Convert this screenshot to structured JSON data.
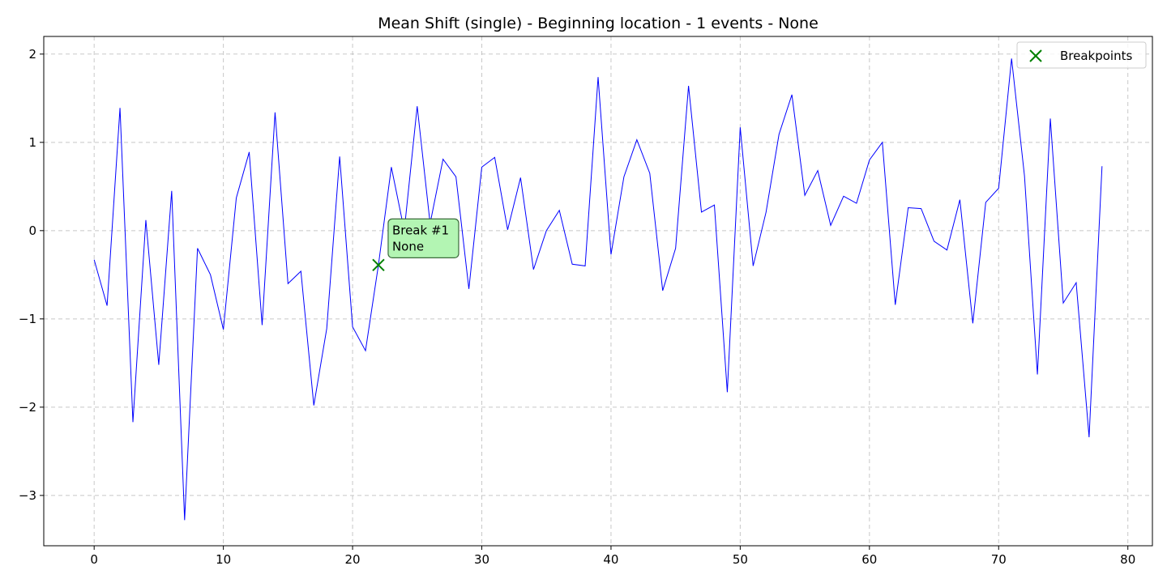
{
  "chart_data": {
    "type": "line",
    "title": "Mean Shift (single) - Beginning location - 1 events - None",
    "xlabel": "",
    "ylabel": "",
    "xlim": [
      -3.9,
      81.9
    ],
    "ylim": [
      -3.57,
      2.2
    ],
    "x_ticks": [
      0,
      10,
      20,
      30,
      40,
      50,
      60,
      70,
      80
    ],
    "y_ticks": [
      2,
      1,
      0,
      -1,
      -2,
      -3
    ],
    "y_tick_labels": [
      "2",
      "1",
      "0",
      "−1",
      "−2",
      "−3"
    ],
    "grid": true,
    "legend_position": "top-right",
    "series": [
      {
        "color": "#0000ff",
        "x": [
          0,
          1,
          2,
          3,
          4,
          5,
          6,
          7,
          8,
          9,
          10,
          11,
          12,
          13,
          14,
          15,
          16,
          17,
          18,
          19,
          20,
          21,
          22,
          23,
          24,
          25,
          26,
          27,
          28,
          29,
          30,
          31,
          32,
          33,
          34,
          35,
          36,
          37,
          38,
          39,
          40,
          41,
          42,
          43,
          44,
          45,
          46,
          47,
          48,
          49,
          50,
          51,
          52,
          53,
          54,
          55,
          56,
          57,
          58,
          59,
          60,
          61,
          62,
          63,
          64,
          65,
          66,
          67,
          68,
          69,
          70,
          71,
          72,
          73,
          74,
          75,
          76,
          77,
          78
        ],
        "values": [
          -0.33,
          -0.85,
          1.39,
          -2.17,
          0.12,
          -1.52,
          0.45,
          -3.28,
          -0.2,
          -0.5,
          -1.12,
          0.37,
          0.89,
          -1.07,
          1.34,
          -0.6,
          -0.46,
          -1.98,
          -1.11,
          0.84,
          -1.09,
          -1.36,
          -0.39,
          0.72,
          0.0,
          1.41,
          0.08,
          0.81,
          0.61,
          -0.66,
          0.72,
          0.83,
          0.01,
          0.6,
          -0.44,
          0.0,
          0.23,
          -0.38,
          -0.4,
          1.74,
          -0.27,
          0.61,
          1.03,
          0.65,
          -0.68,
          -0.2,
          1.64,
          0.21,
          0.29,
          -1.83,
          1.17,
          -0.4,
          0.21,
          1.09,
          1.54,
          0.4,
          0.68,
          0.06,
          0.39,
          0.31,
          0.8,
          1.0,
          -0.84,
          0.26,
          0.25,
          -0.12,
          -0.22,
          0.35,
          -1.05,
          0.32,
          0.48,
          1.95,
          0.62,
          -1.63,
          1.27,
          -0.82,
          -0.59,
          -2.34,
          0.73
        ]
      }
    ],
    "breakpoints": {
      "name": "Breakpoints",
      "color": "#008000",
      "x": [
        22
      ],
      "values": [
        -0.39
      ]
    },
    "annotations": [
      {
        "line1": "Break #1",
        "line2": "None",
        "x": 22,
        "y": -0.39
      }
    ]
  }
}
